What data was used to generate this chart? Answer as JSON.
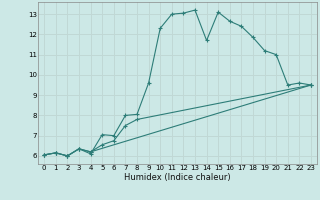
{
  "xlabel": "Humidex (Indice chaleur)",
  "bg_color": "#cce8e6",
  "line_color": "#2d7d78",
  "grid_color": "#c0d8d5",
  "xlim": [
    -0.5,
    23.5
  ],
  "ylim": [
    5.6,
    13.6
  ],
  "xticks": [
    0,
    1,
    2,
    3,
    4,
    5,
    6,
    7,
    8,
    9,
    10,
    11,
    12,
    13,
    14,
    15,
    16,
    17,
    18,
    19,
    20,
    21,
    22,
    23
  ],
  "yticks": [
    6,
    7,
    8,
    9,
    10,
    11,
    12,
    13
  ],
  "series1_x": [
    0,
    1,
    2,
    3,
    4,
    5,
    6,
    7,
    8,
    9,
    10,
    11,
    12,
    13,
    14,
    15,
    16,
    17,
    18,
    19,
    20,
    21,
    22,
    23
  ],
  "series1_y": [
    6.05,
    6.15,
    6.0,
    6.35,
    6.1,
    7.05,
    7.0,
    8.0,
    8.05,
    9.6,
    12.3,
    13.0,
    13.05,
    13.2,
    11.7,
    13.1,
    12.65,
    12.4,
    11.85,
    11.2,
    11.0,
    9.5,
    9.6,
    9.5
  ],
  "series2_x": [
    0,
    1,
    2,
    3,
    4,
    5,
    6,
    7,
    8,
    23
  ],
  "series2_y": [
    6.05,
    6.15,
    6.0,
    6.35,
    6.2,
    6.55,
    6.75,
    7.5,
    7.8,
    9.5
  ],
  "series3_x": [
    0,
    1,
    2,
    3,
    4,
    23
  ],
  "series3_y": [
    6.05,
    6.15,
    6.0,
    6.35,
    6.2,
    9.5
  ]
}
